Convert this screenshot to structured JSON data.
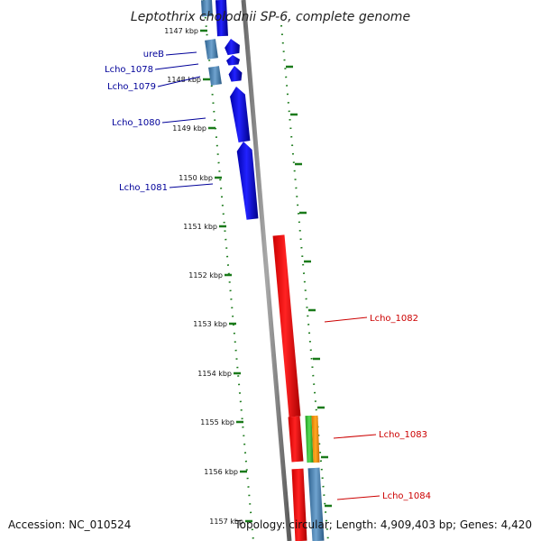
{
  "title": "Leptothrix cholodnii SP-6, complete genome",
  "accession": "Accession: NC_010524",
  "summary": "Topology: circular; Length: 4,909,403 bp; Genes: 4,420",
  "colors": {
    "forward": "#0000ee",
    "reverse": "#ff0000",
    "other": "#4d86b8",
    "green": "#33bb33",
    "orange": "#ff9900",
    "tick": "#1a7a1a",
    "backbone": "#888888"
  },
  "ticks": [
    {
      "label": "1147 kbp"
    },
    {
      "label": "1148 kbp"
    },
    {
      "label": "1149 kbp"
    },
    {
      "label": "1150 kbp"
    },
    {
      "label": "1151 kbp"
    },
    {
      "label": "1152 kbp"
    },
    {
      "label": "1153 kbp"
    },
    {
      "label": "1154 kbp"
    },
    {
      "label": "1155 kbp"
    },
    {
      "label": "1156 kbp"
    },
    {
      "label": "1157 kbp"
    }
  ],
  "gene_labels_left": [
    {
      "label": "ureB",
      "color": "#000099"
    },
    {
      "label": "Lcho_1078",
      "color": "#000099"
    },
    {
      "label": "Lcho_1079",
      "color": "#000099"
    },
    {
      "label": "Lcho_1080",
      "color": "#000099"
    },
    {
      "label": "Lcho_1081",
      "color": "#000099"
    }
  ],
  "gene_labels_right": [
    {
      "label": "Lcho_1082",
      "color": "#cc0000"
    },
    {
      "label": "Lcho_1083",
      "color": "#cc0000"
    },
    {
      "label": "Lcho_1084",
      "color": "#cc0000"
    }
  ]
}
